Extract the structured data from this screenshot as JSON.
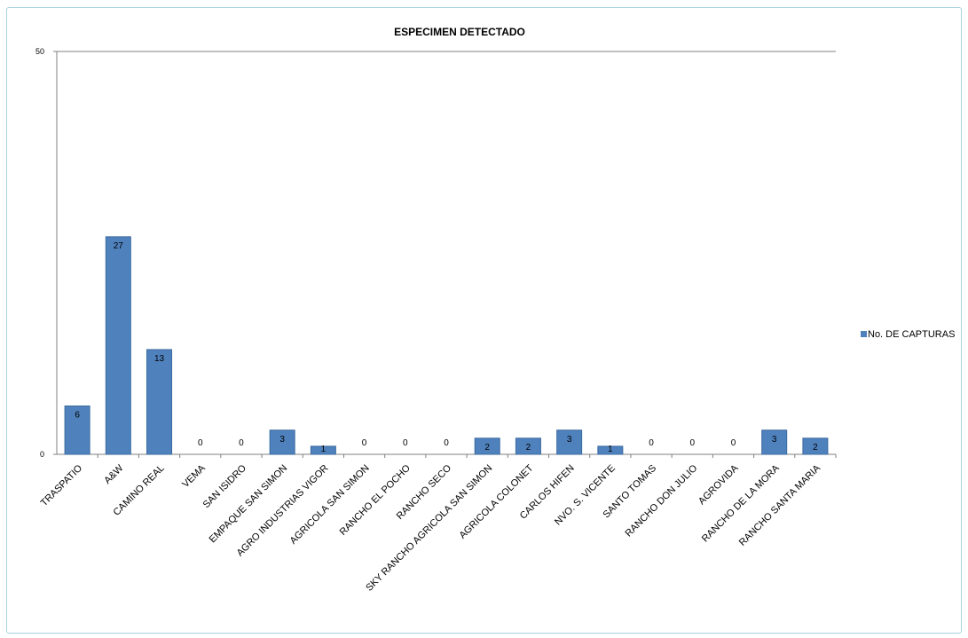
{
  "chart_data": {
    "type": "bar",
    "title": "ESPECIMEN DETECTADO",
    "xlabel": "",
    "ylabel": "",
    "ylim": [
      0,
      50
    ],
    "yticks": [
      "0",
      "50"
    ],
    "grid": false,
    "legend_position": "right",
    "categories": [
      "TRASPATIO",
      "A&W",
      "CAMINO REAL",
      "VEMA",
      "SAN ISIDRO",
      "EMPAQUE SAN SIMON",
      "AGRO INDUSTRIAS  VIGOR",
      "AGRICOLA SAN SIMON",
      "RANCHO EL POCHO",
      "RANCHO SECO",
      "SKY RANCHO AGRICOLA SAN SIMON",
      "AGRICOLA COLONET",
      "CARLOS HIFEN",
      "NVO. S. VICENTE",
      "SANTO TOMAS",
      "RANCHO DON JULIO",
      "AGROVIDA",
      "RANCHO DE LA MORA",
      "RANCHO SANTA MARIA"
    ],
    "series": [
      {
        "name": "No. DE CAPTURAS",
        "color": "#4f81bd",
        "values": [
          6,
          27,
          13,
          0,
          0,
          3,
          1,
          0,
          0,
          0,
          2,
          2,
          3,
          1,
          0,
          0,
          0,
          3,
          2
        ]
      }
    ]
  }
}
